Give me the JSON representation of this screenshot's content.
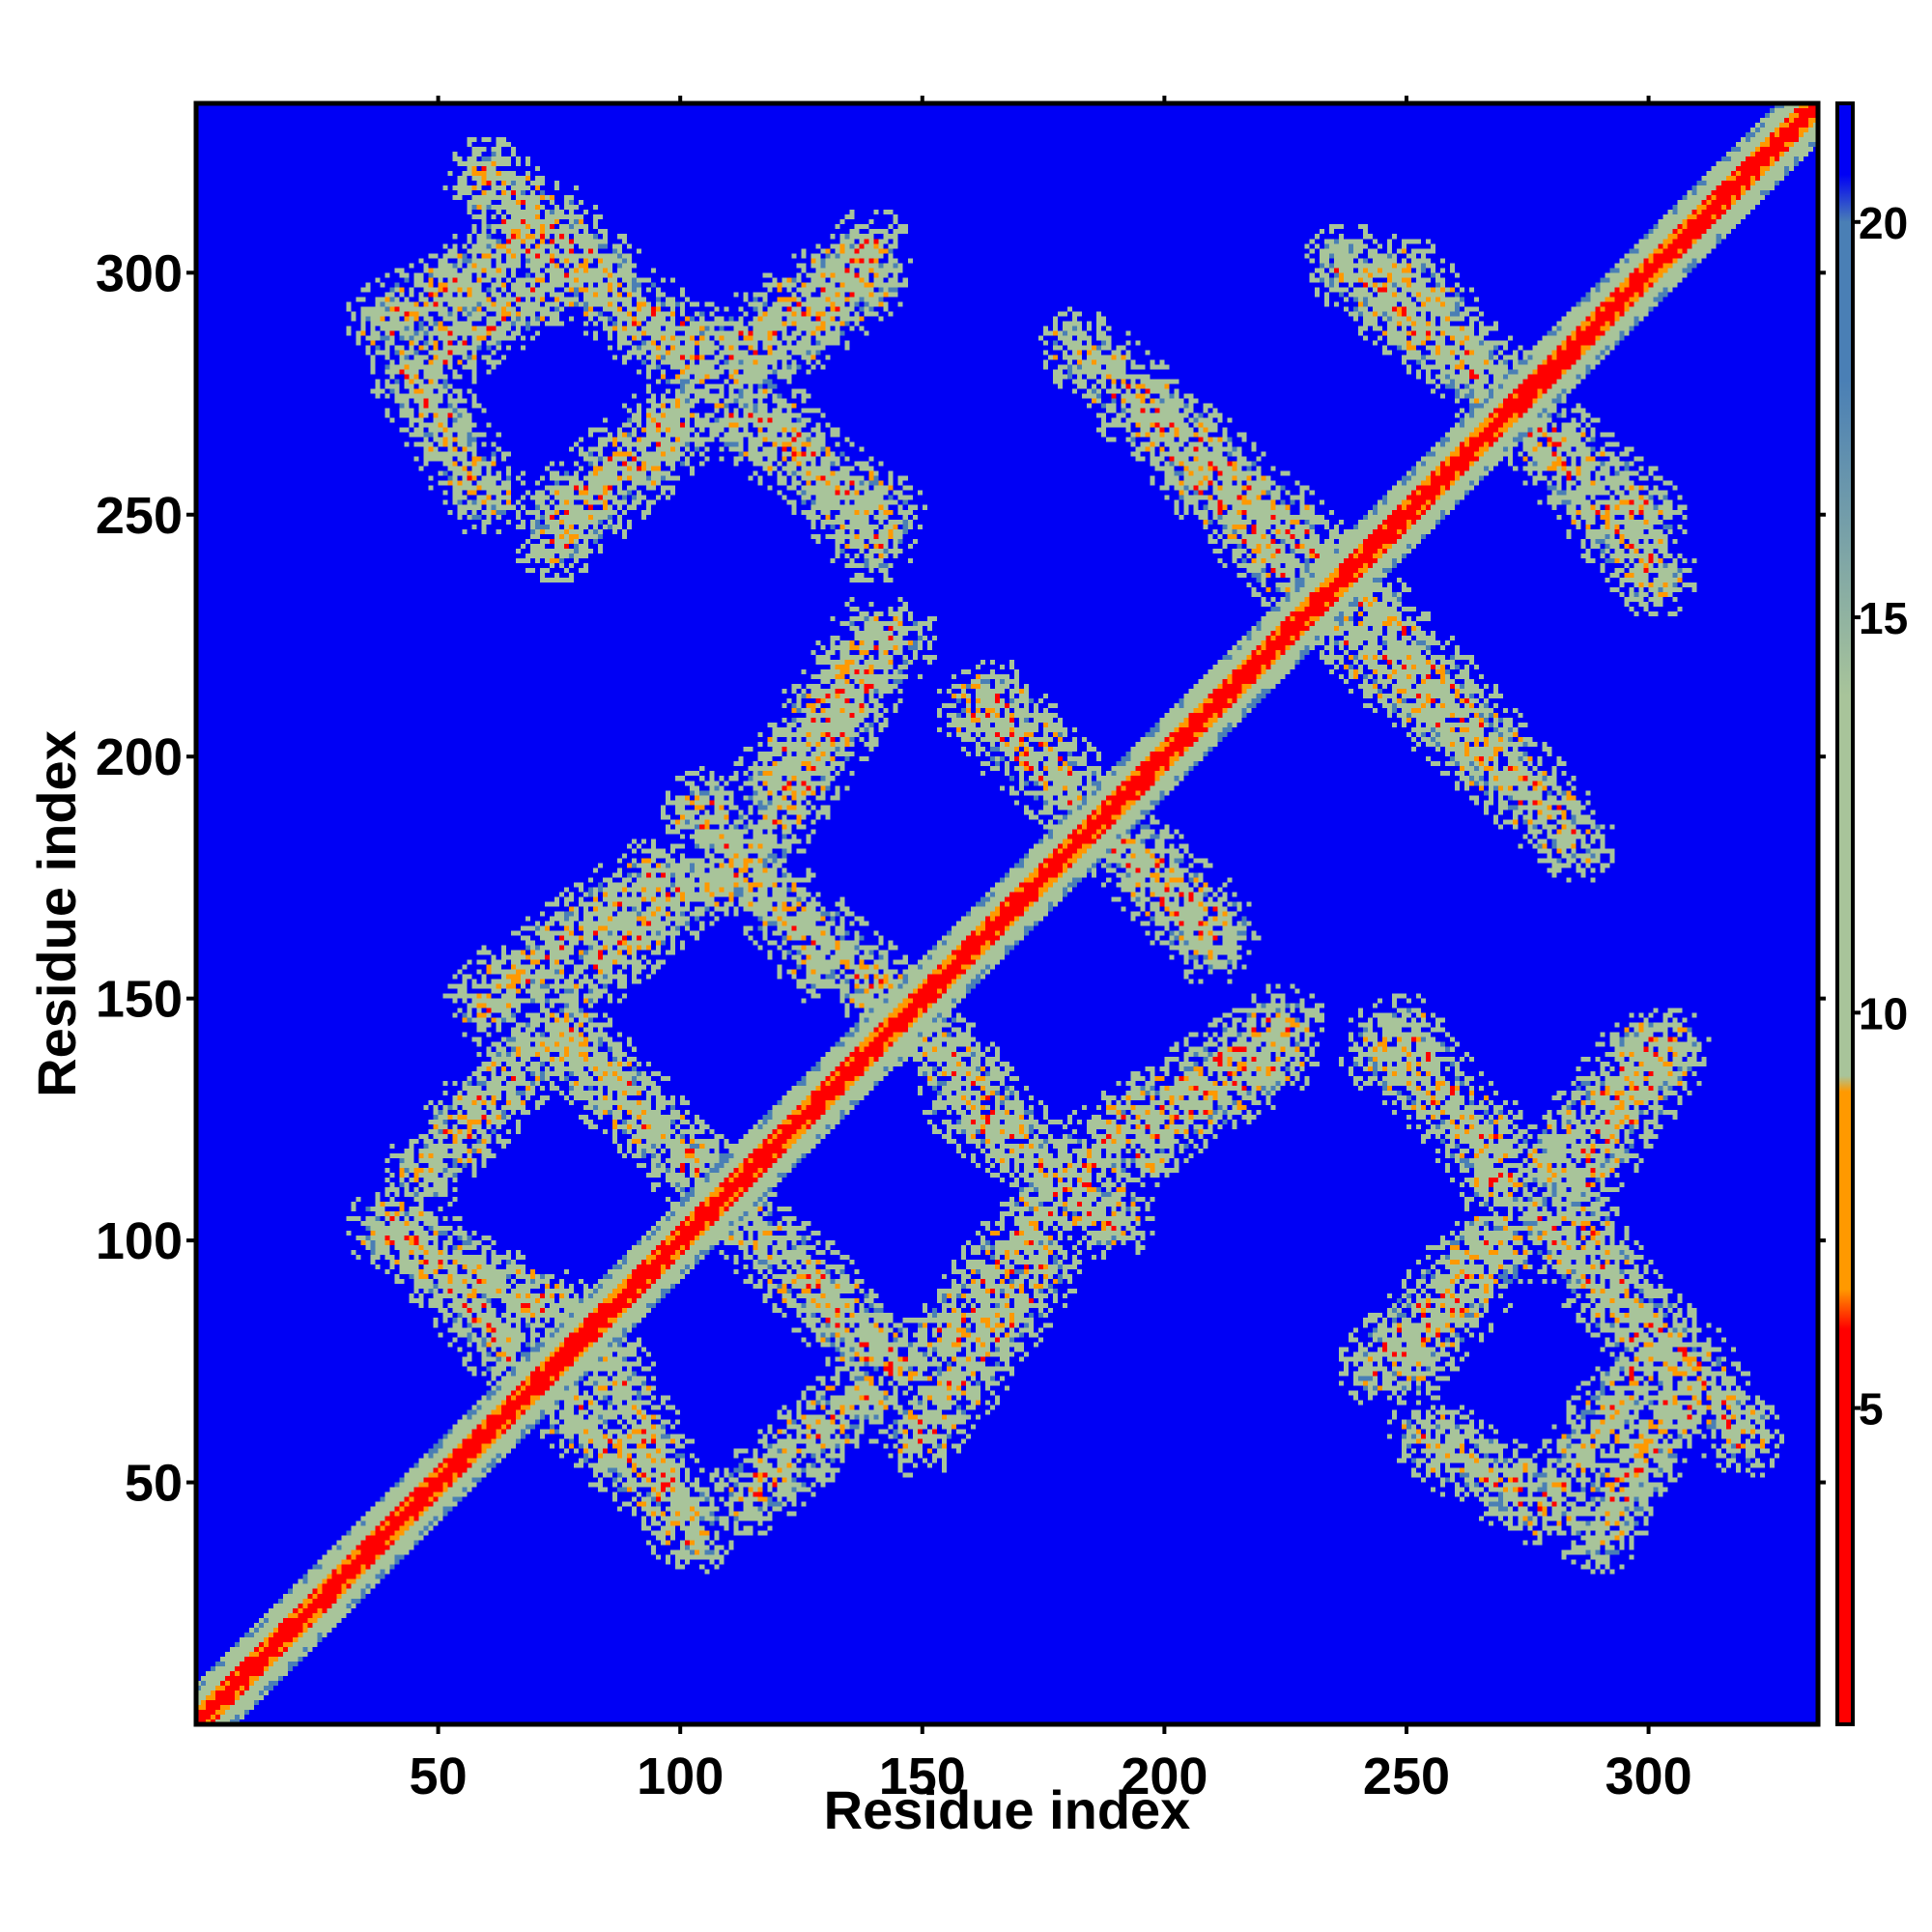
{
  "chart_data": {
    "type": "heatmap",
    "title": "",
    "xlabel": "Residue index",
    "ylabel": "Residue index",
    "xlim": [
      0,
      335
    ],
    "ylim": [
      0,
      335
    ],
    "x_ticks": [
      50,
      100,
      150,
      200,
      250,
      300
    ],
    "y_ticks": [
      50,
      100,
      150,
      200,
      250,
      300
    ],
    "x_tick_labels": [
      "50",
      "100",
      "150",
      "200",
      "250",
      "300"
    ],
    "y_tick_labels": [
      "50",
      "100",
      "150",
      "200",
      "250",
      "300"
    ],
    "grid": false,
    "colorbar": {
      "position": "right",
      "range": [
        1,
        21.5
      ],
      "ticks": [
        5,
        10,
        15,
        20
      ],
      "tick_labels": [
        "5",
        "10",
        "15",
        "20"
      ],
      "colors": {
        "near": "#ff0000",
        "mid": "#ff9900",
        "band": "#a8c49a",
        "far": "#4a7fb5",
        "background": "#0000f5"
      }
    },
    "matrix_description_value": "symmetric residue-residue distance map (Å-like scale 1–21+)",
    "contact_bands": [
      {
        "kind": "antiparallel",
        "start": [
          40,
          290
        ],
        "end": [
          75,
          310
        ]
      },
      {
        "kind": "antiparallel",
        "start": [
          65,
          310
        ],
        "end": [
          105,
          285
        ]
      },
      {
        "kind": "parallel",
        "start": [
          112,
          285
        ],
        "end": [
          140,
          305
        ]
      },
      {
        "kind": "antiparallel",
        "start": [
          48,
          275
        ],
        "end": [
          60,
          255
        ]
      },
      {
        "kind": "parallel",
        "start": [
          75,
          250
        ],
        "end": [
          98,
          270
        ]
      },
      {
        "kind": "antiparallel",
        "start": [
          113,
          270
        ],
        "end": [
          143,
          250
        ]
      },
      {
        "kind": "antiparallel",
        "start": [
          183,
          285
        ],
        "end": [
          235,
          240
        ]
      },
      {
        "kind": "antiparallel",
        "start": [
          238,
          302
        ],
        "end": [
          300,
          250
        ]
      },
      {
        "kind": "parallel",
        "start": [
          115,
          180
        ],
        "end": [
          145,
          225
        ]
      },
      {
        "kind": "antiparallel",
        "start": [
          112,
          178
        ],
        "end": [
          145,
          150
        ]
      },
      {
        "kind": "antiparallel",
        "start": [
          162,
          210
        ],
        "end": [
          212,
          165
        ]
      },
      {
        "kind": "antiparallel",
        "start": [
          240,
          225
        ],
        "end": [
          278,
          190
        ]
      },
      {
        "kind": "parallel",
        "start": [
          60,
          150
        ],
        "end": [
          95,
          175
        ]
      },
      {
        "kind": "antiparallel",
        "start": [
          40,
          103
        ],
        "end": [
          75,
          85
        ]
      },
      {
        "kind": "antiparallel",
        "start": [
          78,
          140
        ],
        "end": [
          145,
          75
        ]
      },
      {
        "kind": "parallel",
        "start": [
          48,
          115
        ],
        "end": [
          70,
          140
        ]
      },
      {
        "kind": "antiparallel",
        "start": [
          78,
          65
        ],
        "end": [
          102,
          45
        ]
      },
      {
        "kind": "parallel",
        "start": [
          155,
          80
        ],
        "end": [
          175,
          105
        ]
      },
      {
        "kind": "antiparallel",
        "start": [
          158,
          130
        ],
        "end": [
          190,
          105
        ]
      },
      {
        "kind": "parallel",
        "start": [
          195,
          120
        ],
        "end": [
          225,
          140
        ]
      },
      {
        "kind": "antiparallel",
        "start": [
          245,
          140
        ],
        "end": [
          270,
          120
        ]
      },
      {
        "kind": "parallel",
        "start": [
          280,
          115
        ],
        "end": [
          300,
          140
        ]
      },
      {
        "kind": "antiparallel",
        "start": [
          280,
          105
        ],
        "end": [
          300,
          80
        ]
      },
      {
        "kind": "parallel",
        "start": [
          280,
          45
        ],
        "end": [
          300,
          75
        ]
      },
      {
        "kind": "parallel",
        "start": [
          245,
          75
        ],
        "end": [
          268,
          100
        ]
      },
      {
        "kind": "antiparallel",
        "start": [
          300,
          85
        ],
        "end": [
          320,
          60
        ]
      }
    ]
  }
}
